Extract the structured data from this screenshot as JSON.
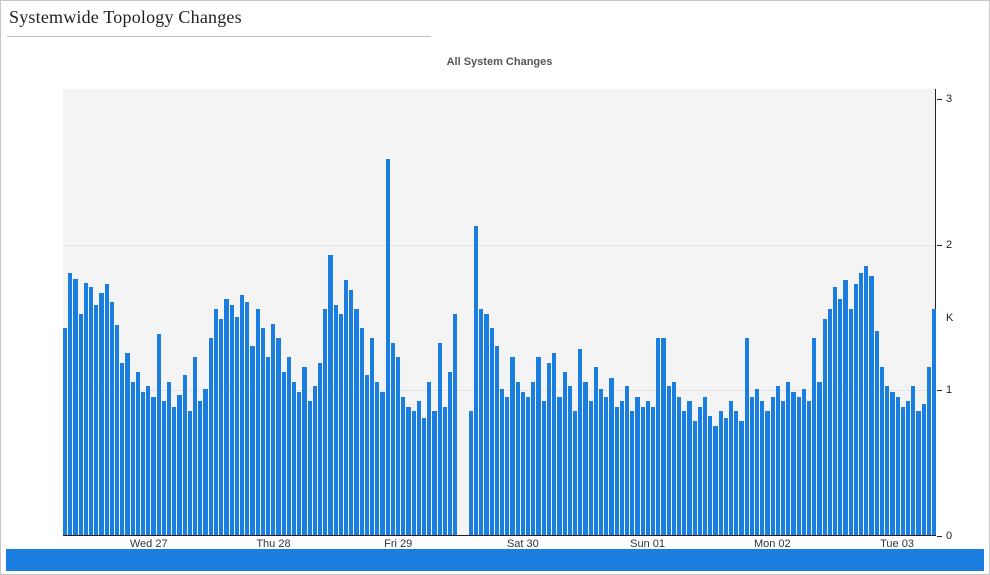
{
  "page": {
    "title": "Systemwide Topology Changes"
  },
  "chart": {
    "bar_color": "#1a7de0",
    "plot_bg": "#f4f4f5",
    "axis_color": "#222222",
    "range_selector_color": "#1a7de0"
  },
  "chart_data": {
    "type": "bar",
    "title": "All System Changes",
    "ylabel": "K",
    "ylim": [
      0,
      3
    ],
    "y_ticks": [
      0,
      1,
      2,
      3
    ],
    "grid_values": [
      1,
      2
    ],
    "grid": true,
    "legend": "none",
    "x_tick_labels": [
      "Wed 27",
      "Thu 28",
      "Fri 29",
      "Sat 30",
      "Sun 01",
      "Mon 02",
      "Tue 03"
    ],
    "x_tick_positions": [
      16,
      40,
      64,
      88,
      112,
      136,
      160
    ],
    "values": [
      1.42,
      1.8,
      1.76,
      1.52,
      1.73,
      1.7,
      1.58,
      1.66,
      1.72,
      1.6,
      1.44,
      1.18,
      1.25,
      1.05,
      1.12,
      0.98,
      1.02,
      0.95,
      1.38,
      0.92,
      1.05,
      0.88,
      0.96,
      1.1,
      0.85,
      1.22,
      0.92,
      1.0,
      1.35,
      1.55,
      1.48,
      1.62,
      1.58,
      1.5,
      1.65,
      1.6,
      1.3,
      1.55,
      1.42,
      1.22,
      1.45,
      1.35,
      1.12,
      1.22,
      1.05,
      0.98,
      1.15,
      0.92,
      1.02,
      1.18,
      1.55,
      1.92,
      1.58,
      1.52,
      1.75,
      1.68,
      1.55,
      1.42,
      1.1,
      1.35,
      1.05,
      0.98,
      2.58,
      1.32,
      1.22,
      0.95,
      0.88,
      0.85,
      0.92,
      0.8,
      1.05,
      0.85,
      1.32,
      0.88,
      1.12,
      1.52,
      0.0,
      0.0,
      0.85,
      2.12,
      1.55,
      1.52,
      1.42,
      1.3,
      1.0,
      0.95,
      1.22,
      1.05,
      0.98,
      0.95,
      1.05,
      1.22,
      0.92,
      1.18,
      1.25,
      0.95,
      1.12,
      1.02,
      0.85,
      1.28,
      1.05,
      0.92,
      1.15,
      1.0,
      0.95,
      1.08,
      0.88,
      0.92,
      1.02,
      0.85,
      0.95,
      0.88,
      0.92,
      0.88,
      1.35,
      1.35,
      1.02,
      1.05,
      0.95,
      0.85,
      0.92,
      0.78,
      0.88,
      0.95,
      0.82,
      0.75,
      0.85,
      0.8,
      0.92,
      0.85,
      0.78,
      1.35,
      0.95,
      1.0,
      0.92,
      0.85,
      0.95,
      1.02,
      0.92,
      1.05,
      0.98,
      0.95,
      1.0,
      0.92,
      1.35,
      1.05,
      1.48,
      1.55,
      1.7,
      1.62,
      1.75,
      1.55,
      1.72,
      1.8,
      1.85,
      1.78,
      1.4,
      1.15,
      1.02,
      0.98,
      0.95,
      0.88,
      0.92,
      1.02,
      0.85,
      0.9,
      1.15,
      1.55
    ]
  }
}
